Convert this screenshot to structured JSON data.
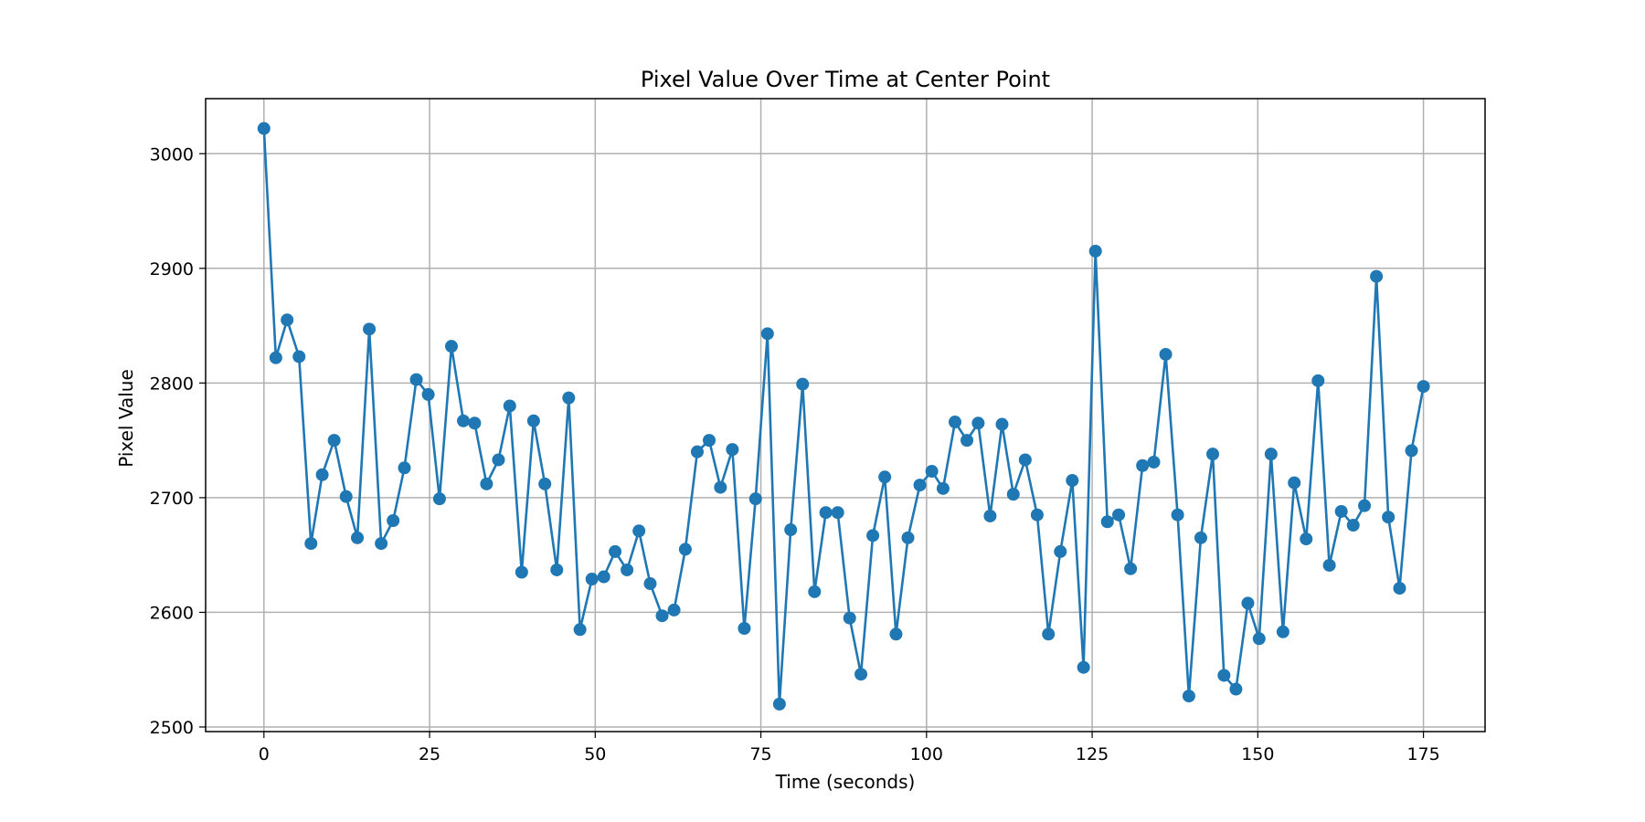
{
  "chart_data": {
    "type": "line",
    "title": "Pixel Value Over Time at Center Point",
    "xlabel": "Time (seconds)",
    "ylabel": "Pixel Value",
    "xlim": [
      -8.8,
      184.3
    ],
    "ylim": [
      2496,
      3048
    ],
    "xticks": [
      0,
      25,
      50,
      75,
      100,
      125,
      150,
      175
    ],
    "yticks": [
      2500,
      2600,
      2700,
      2800,
      2900,
      3000
    ],
    "grid": true,
    "legend": "none",
    "markers": "circle",
    "series": [
      {
        "color": "#1f77b4",
        "x": [
          0.0,
          1.8,
          3.5,
          5.3,
          7.1,
          8.8,
          10.6,
          12.4,
          14.1,
          15.9,
          17.7,
          19.5,
          21.2,
          23.0,
          24.8,
          26.5,
          28.3,
          30.1,
          31.8,
          33.6,
          35.4,
          37.1,
          38.9,
          40.7,
          42.4,
          44.2,
          46.0,
          47.7,
          49.5,
          51.3,
          53.0,
          54.8,
          56.6,
          58.3,
          60.1,
          61.9,
          63.6,
          65.4,
          67.2,
          68.9,
          70.7,
          72.5,
          74.2,
          76.0,
          77.8,
          79.5,
          81.3,
          83.1,
          84.8,
          86.6,
          88.4,
          90.1,
          91.9,
          93.7,
          95.4,
          97.2,
          99.0,
          100.8,
          102.5,
          104.3,
          106.1,
          107.8,
          109.6,
          111.4,
          113.1,
          114.9,
          116.7,
          118.4,
          120.2,
          122.0,
          123.7,
          125.5,
          127.3,
          129.0,
          130.8,
          132.6,
          134.3,
          136.1,
          137.9,
          139.6,
          141.4,
          143.2,
          144.9,
          146.7,
          148.5,
          150.2,
          152.0,
          153.8,
          155.5,
          157.3,
          159.1,
          160.8,
          162.6,
          164.4,
          166.1,
          167.9,
          169.7,
          171.4,
          173.2,
          175.0
        ],
        "y": [
          3022,
          2822,
          2855,
          2823,
          2660,
          2720,
          2750,
          2701,
          2665,
          2847,
          2660,
          2680,
          2726,
          2803,
          2790,
          2699,
          2832,
          2767,
          2765,
          2712,
          2733,
          2780,
          2635,
          2767,
          2712,
          2637,
          2787,
          2585,
          2629,
          2631,
          2653,
          2637,
          2671,
          2625,
          2597,
          2602,
          2655,
          2740,
          2750,
          2709,
          2742,
          2586,
          2699,
          2843,
          2520,
          2672,
          2799,
          2618,
          2687,
          2687,
          2595,
          2546,
          2667,
          2718,
          2581,
          2665,
          2711,
          2723,
          2708,
          2766,
          2750,
          2765,
          2684,
          2764,
          2703,
          2733,
          2685,
          2581,
          2653,
          2715,
          2552,
          2915,
          2679,
          2685,
          2638,
          2728,
          2731,
          2825,
          2685,
          2527,
          2665,
          2738,
          2545,
          2533,
          2608,
          2577,
          2738,
          2583,
          2713,
          2664,
          2802,
          2641,
          2688,
          2676,
          2693,
          2893,
          2683,
          2621,
          2741,
          2797
        ]
      }
    ]
  }
}
